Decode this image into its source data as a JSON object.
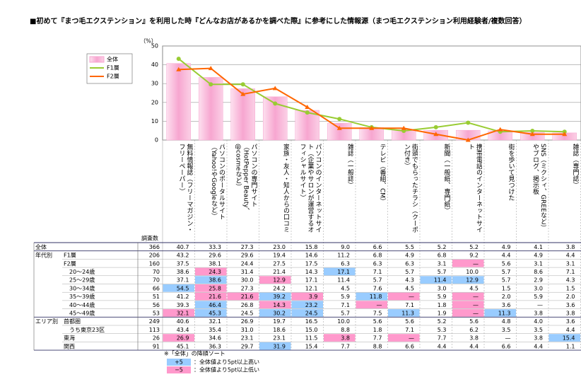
{
  "title": "■初めて『まつ毛エクステンション』を利用した時『どんなお店があるかを調べた際』に参考にした情報源（まつ毛エクステンション利用経験者/複数回答）",
  "chart_data": {
    "type": "bar",
    "y_unit": "（%）",
    "categories": [
      "無料情報誌（フリーマガジン・フリーペーパー）",
      "パソコンのポータルサイト（Yahoo!やGoogleなど）",
      "パソコンの専門サイト（HotPepper Beauty、@cosmeなど）",
      "家族・友人・知人からの口コミ",
      "パソコンのインターネットサイト（企業やサロンが運営するオフィシャルサイト）",
      "雑誌（一般誌）",
      "テレビ（番組、CM）",
      "街頭でもらったチラシ（クーポン付き）",
      "新聞（一般紙、専門紙）",
      "携帯電話のインターネットサイト",
      "街を歩いて見つけた",
      "SNS（ミクシィ、GREEなど）やブログ、掲示板",
      "雑誌（専門誌）"
    ],
    "ylim": [
      0,
      50
    ],
    "yticks": [
      0,
      10,
      20,
      30,
      40,
      50
    ],
    "grid": true,
    "legend": "upper-left",
    "series": [
      {
        "name": "全体",
        "type": "bar",
        "color": "#f7a6d0",
        "values": [
          40.7,
          33.3,
          27.3,
          23.0,
          15.8,
          9.0,
          6.6,
          5.5,
          5.2,
          5.2,
          4.9,
          4.1,
          3.8
        ]
      },
      {
        "name": "F1層",
        "type": "line",
        "color": "#99cc33",
        "values": [
          43.2,
          29.6,
          29.6,
          19.4,
          14.6,
          11.2,
          6.8,
          4.9,
          6.8,
          9.2,
          4.4,
          4.9,
          4.4
        ]
      },
      {
        "name": "F2層",
        "type": "line",
        "color": "#ff6600",
        "values": [
          37.5,
          38.1,
          24.4,
          27.5,
          17.5,
          6.3,
          6.3,
          6.3,
          3.1,
          0,
          5.6,
          3.1,
          3.1
        ]
      }
    ]
  },
  "table": {
    "header": "調査数",
    "threshold": 5,
    "rows": [
      {
        "group": "全体",
        "n": 366,
        "cells": [
          "40.7",
          "33.3",
          "27.3",
          "23.0",
          "15.8",
          "9.0",
          "6.6",
          "5.5",
          "5.2",
          "5.2",
          "4.9",
          "4.1",
          "3.8"
        ]
      },
      {
        "group": "年代別",
        "label": "F1層",
        "n": 206,
        "cells": [
          "43.2",
          "29.6",
          "29.6",
          "19.4",
          "14.6",
          "11.2",
          "6.8",
          "4.9",
          "6.8",
          "9.2",
          "4.4",
          "4.9",
          "4.4"
        ]
      },
      {
        "label": "F2層",
        "n": 160,
        "cells": [
          "37.5",
          "38.1",
          "24.4",
          "27.5",
          "17.5",
          "6.3",
          "6.3",
          "6.3",
          "3.1",
          "—",
          "5.6",
          "3.1",
          "3.1"
        ]
      },
      {
        "label": "20～24歳",
        "n": 70,
        "cells": [
          "38.6",
          "24.3",
          "31.4",
          "21.4",
          "14.3",
          "17.1",
          "7.1",
          "5.7",
          "5.7",
          "10.0",
          "5.7",
          "8.6",
          "7.1"
        ]
      },
      {
        "label": "25～29歳",
        "n": 70,
        "cells": [
          "37.1",
          "38.6",
          "30.0",
          "12.9",
          "17.1",
          "11.4",
          "5.7",
          "4.3",
          "11.4",
          "12.9",
          "5.7",
          "2.9",
          "4.3"
        ]
      },
      {
        "label": "30～34歳",
        "n": 66,
        "cells": [
          "54.5",
          "25.8",
          "27.3",
          "24.2",
          "12.1",
          "4.5",
          "7.6",
          "4.5",
          "3.0",
          "4.5",
          "1.5",
          "3.0",
          "1.5"
        ]
      },
      {
        "label": "35～39歳",
        "n": 51,
        "cells": [
          "41.2",
          "21.6",
          "21.6",
          "39.2",
          "3.9",
          "5.9",
          "11.8",
          "—",
          "5.9",
          "—",
          "2.0",
          "5.9",
          "2.0"
        ]
      },
      {
        "label": "40～44歳",
        "n": 56,
        "cells": [
          "39.3",
          "46.4",
          "26.8",
          "14.3",
          "23.2",
          "7.1",
          "—",
          "7.1",
          "1.8",
          "—",
          "3.6",
          "—",
          "3.6"
        ]
      },
      {
        "label": "45～49歳",
        "n": 53,
        "cells": [
          "32.1",
          "45.3",
          "24.5",
          "30.2",
          "24.5",
          "5.7",
          "7.5",
          "11.3",
          "1.9",
          "—",
          "11.3",
          "3.8",
          "3.8"
        ]
      },
      {
        "group": "エリア別",
        "label": "首都圏",
        "n": 249,
        "cells": [
          "40.6",
          "32.1",
          "26.9",
          "19.7",
          "16.5",
          "10.0",
          "5.6",
          "5.6",
          "5.2",
          "5.6",
          "4.8",
          "4.0",
          "3.6"
        ]
      },
      {
        "label": "うち東京23区",
        "n": 113,
        "cells": [
          "43.4",
          "35.4",
          "31.0",
          "18.6",
          "15.0",
          "8.8",
          "1.8",
          "7.1",
          "5.3",
          "6.2",
          "3.5",
          "3.5",
          "4.4"
        ]
      },
      {
        "label": "東海",
        "n": 26,
        "cells": [
          "26.9",
          "34.6",
          "23.1",
          "23.1",
          "11.5",
          "3.8",
          "7.7",
          "—",
          "7.7",
          "3.8",
          "—",
          "3.8",
          "15.4"
        ]
      },
      {
        "label": "関西",
        "n": 91,
        "cells": [
          "45.1",
          "36.3",
          "29.7",
          "31.9",
          "15.4",
          "7.7",
          "8.8",
          "6.6",
          "4.4",
          "4.4",
          "6.6",
          "4.4",
          "1.1"
        ]
      }
    ]
  },
  "notes": {
    "sort": "※「全体」の降順ソート",
    "legend": [
      {
        "label": "+5",
        "text": "：全体値より5pt以上高い",
        "color": "#99ccff"
      },
      {
        "label": "−5",
        "text": "：全体値より5pt以上低い",
        "color": "#ff99cc"
      }
    ]
  }
}
